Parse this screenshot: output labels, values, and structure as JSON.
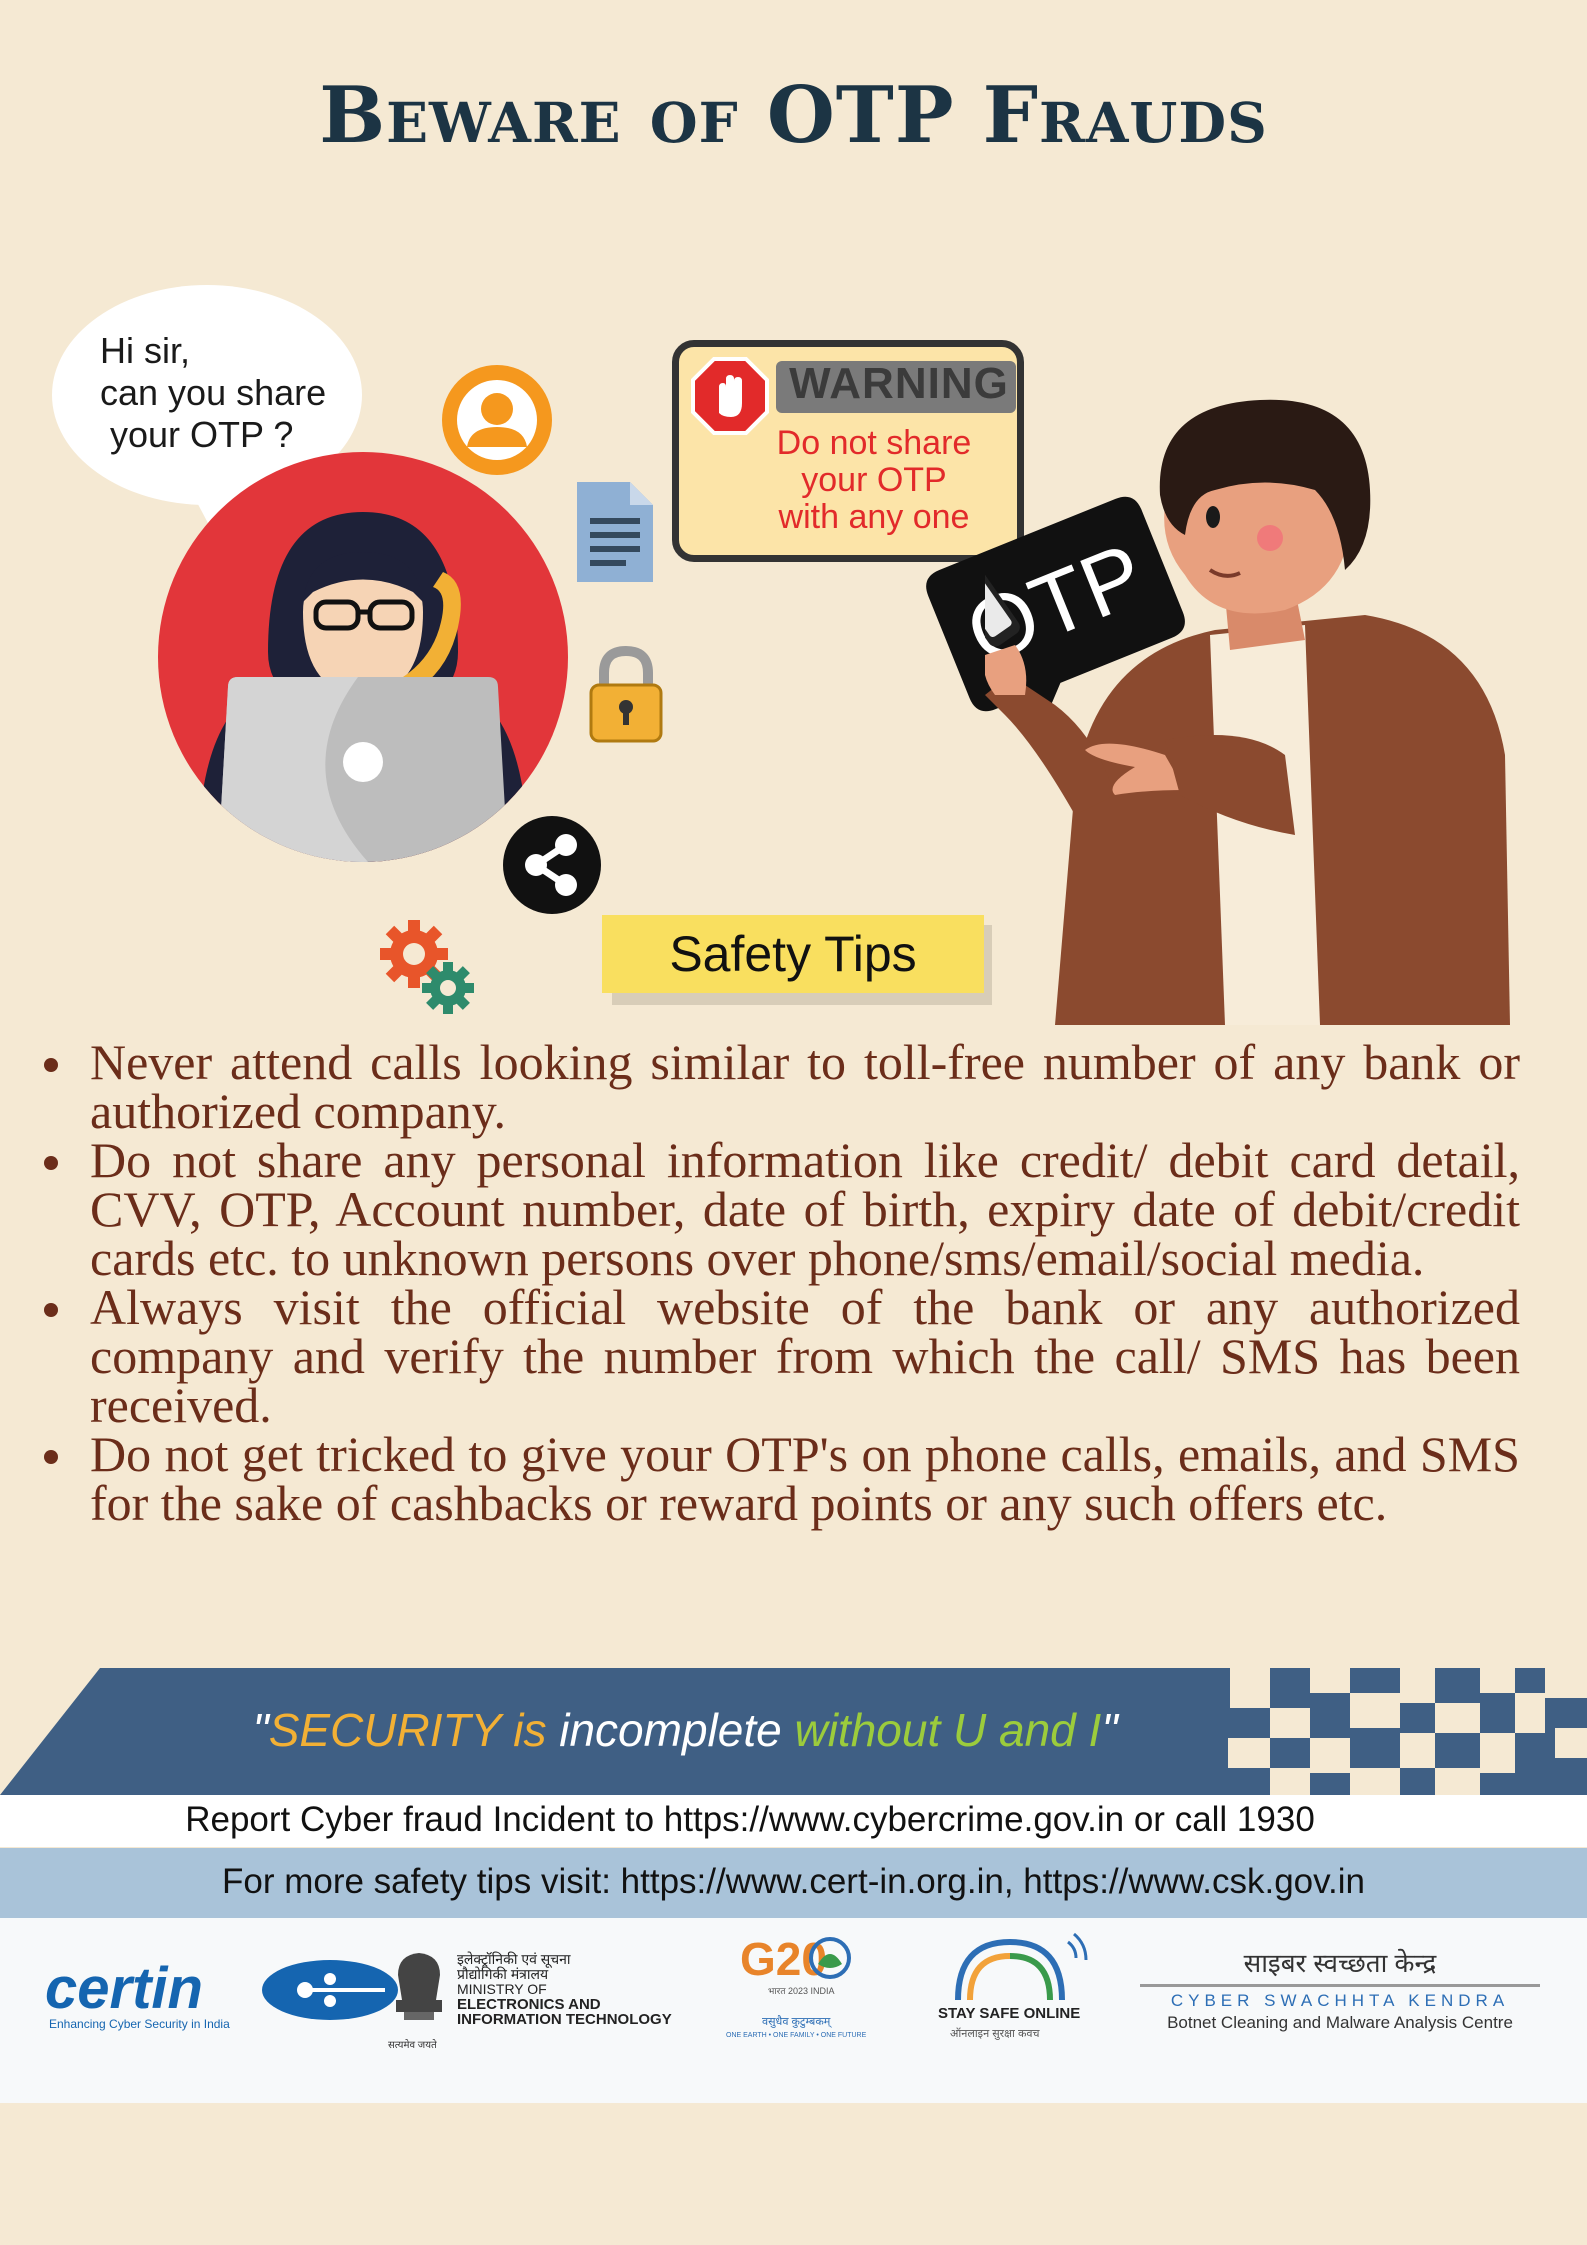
{
  "title": "Beware of OTP Frauds",
  "bubble": {
    "line1": "Hi sir,",
    "line2": "can you share",
    "line3": "your OTP ?"
  },
  "warning": {
    "title": "WARNING",
    "line1": "Do not share",
    "line2": "your OTP",
    "line3": "with any one"
  },
  "otp_tag": "OTP",
  "tips_label": "Safety Tips",
  "tips": [
    "Never attend calls looking similar to toll-free number of any bank or authorized company.",
    "Do not share any personal information like credit/ debit card detail, CVV, OTP, Account number, date of birth, expiry date of debit/credit cards etc. to unknown persons over phone/sms/email/social media.",
    "Always visit the official website of the bank or any authorized company and verify the number from which the call/ SMS has been received.",
    "Do not get tricked to give your OTP's on phone calls, emails, and SMS for the sake of cashbacks or reward points or any such offers etc."
  ],
  "quote": {
    "open": "\"",
    "word1": "SECURITY is",
    "word2": " incomplete ",
    "word3": "without U and I",
    "close": "\""
  },
  "report_line": "Report Cyber fraud Incident to https://www.cybercrime.gov.in or call 1930",
  "more_line": "For more safety tips visit: https://www.cert-in.org.in, https://www.csk.gov.in",
  "logos": {
    "certin": {
      "name": "certin",
      "tagline": "Enhancing Cyber Security in India"
    },
    "meity": {
      "hindi": "इलेक्ट्रॉनिकी एवं सूचना प्रौद्योगिकी मंत्रालय",
      "line1": "MINISTRY OF",
      "line2": "ELECTRONICS AND",
      "line3": "INFORMATION TECHNOLOGY",
      "motto": "सत्यमेव जयते"
    },
    "g20": {
      "mark": "G20",
      "sub": "भारत 2023 INDIA",
      "hindi": "वसुधैव कुटुम्बकम्",
      "tagline": "ONE EARTH • ONE FAMILY • ONE FUTURE"
    },
    "stay_safe": {
      "title": "STAY SAFE ONLINE",
      "hindi": "ऑनलाइन सुरक्षा कवच"
    },
    "csk": {
      "hindi": "साइबर स्वच्छता केन्द्र",
      "name": "CYBER SWACHHTA KENDRA",
      "tagline": "Botnet Cleaning and Malware Analysis Centre"
    }
  },
  "colors": {
    "background": "#f5e9d3",
    "title": "#1c3444",
    "tips_text": "#6b2d1a",
    "banner": "#3f5f84",
    "quote_yellow": "#f2b035",
    "quote_green": "#9ccc3c",
    "tips_label_bg": "#f9df5f",
    "more_strip": "#a9c3d9"
  }
}
